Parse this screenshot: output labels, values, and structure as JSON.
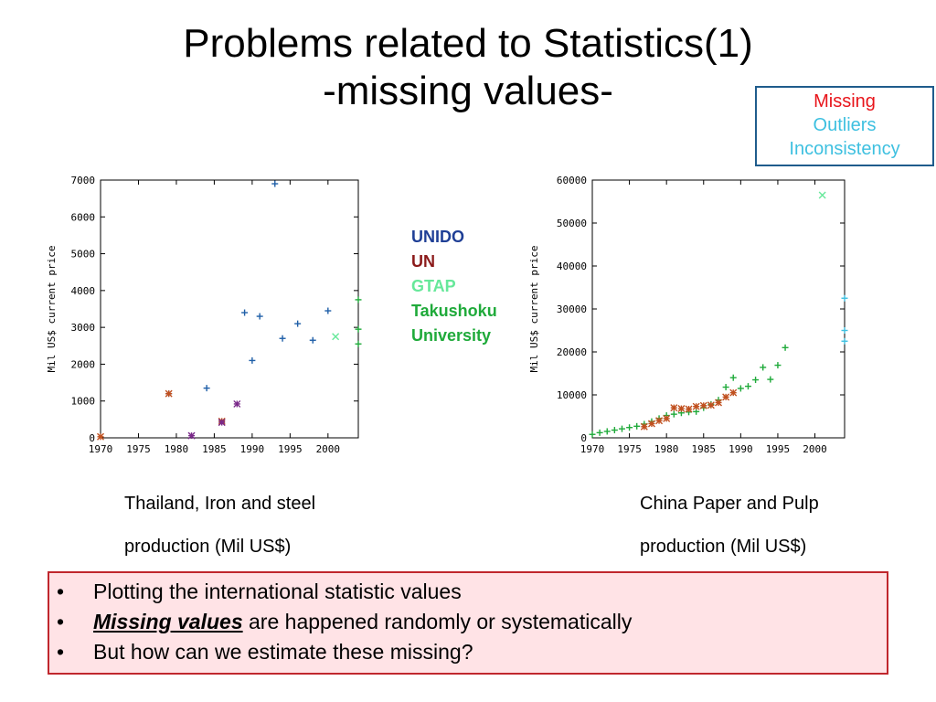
{
  "title": {
    "line1": "Problems related to Statistics(1)",
    "line2": "-missing values-"
  },
  "legend_box": {
    "items": [
      {
        "label": "Missing",
        "color": "#e8151b"
      },
      {
        "label": "Outliers",
        "color": "#3ec0e0"
      },
      {
        "label": "Inconsistency",
        "color": "#3ec0e0"
      }
    ]
  },
  "sources": [
    {
      "label": "UNIDO",
      "color": "#1f3f96"
    },
    {
      "label": "UN",
      "color": "#8b1a1a"
    },
    {
      "label": "GTAP",
      "color": "#66e89a"
    },
    {
      "label": "Takushoku",
      "color": "#1faa3a"
    },
    {
      "label": "University",
      "color": "#1faa3a"
    }
  ],
  "captions": {
    "left": {
      "line1": "Thailand, Iron and steel",
      "line2": "production (Mil US$)"
    },
    "right": {
      "line1": "China Paper and Pulp",
      "line2": "production (Mil US$)"
    }
  },
  "bullets": {
    "b1": "Plotting the international statistic values",
    "b2_em": "Missing values",
    "b2_rest": " are happened randomly or systematically",
    "b3": "But how can we estimate these missing?",
    "dot": "•"
  },
  "chart_data": [
    {
      "type": "scatter",
      "ylabel": "Mil US$ current price",
      "xlabel": "",
      "xlim": [
        1970,
        2004
      ],
      "ylim": [
        0,
        7000
      ],
      "xticks": [
        1970,
        1975,
        1980,
        1985,
        1990,
        1995,
        2000
      ],
      "yticks": [
        0,
        1000,
        2000,
        3000,
        4000,
        5000,
        6000,
        7000
      ],
      "series": [
        {
          "source": "UNIDO",
          "color": "#1f5fa8",
          "marker": "+",
          "points": [
            [
              1979,
              1200
            ],
            [
              1984,
              1350
            ],
            [
              1989,
              3400
            ],
            [
              1990,
              2100
            ],
            [
              1991,
              3300
            ],
            [
              1993,
              6900
            ],
            [
              1994,
              2700
            ],
            [
              1996,
              3100
            ],
            [
              1998,
              2650
            ],
            [
              2000,
              3450
            ]
          ]
        },
        {
          "source": "UN",
          "color": "#c0501f",
          "marker": "*",
          "points": [
            [
              1970,
              30
            ],
            [
              1979,
              1200
            ],
            [
              1986,
              450
            ]
          ]
        },
        {
          "source": "Takushoku University",
          "color": "#7a2a8a",
          "marker": "*",
          "points": [
            [
              1982,
              60
            ],
            [
              1986,
              420
            ],
            [
              1988,
              920
            ]
          ]
        },
        {
          "source": "GTAP",
          "color": "#66e89a",
          "marker": "x",
          "points": [
            [
              2001,
              2750
            ]
          ]
        },
        {
          "source": "edge",
          "color": "#1faa3a",
          "marker": "+",
          "points": [
            [
              2004,
              3750
            ],
            [
              2004,
              2950
            ],
            [
              2004,
              2550
            ]
          ]
        }
      ]
    },
    {
      "type": "scatter",
      "ylabel": "Mil US$ current price",
      "xlabel": "",
      "xlim": [
        1970,
        2004
      ],
      "ylim": [
        0,
        60000
      ],
      "xticks": [
        1970,
        1975,
        1980,
        1985,
        1990,
        1995,
        2000
      ],
      "yticks": [
        0,
        10000,
        20000,
        30000,
        40000,
        50000,
        60000
      ],
      "series": [
        {
          "source": "Takushoku University",
          "color": "#1faa3a",
          "marker": "+",
          "points": [
            [
              1970,
              800
            ],
            [
              1971,
              1200
            ],
            [
              1972,
              1500
            ],
            [
              1973,
              1800
            ],
            [
              1974,
              2100
            ],
            [
              1975,
              2400
            ],
            [
              1976,
              2700
            ],
            [
              1977,
              3200
            ],
            [
              1978,
              3800
            ],
            [
              1979,
              4500
            ],
            [
              1980,
              5200
            ],
            [
              1981,
              5500
            ],
            [
              1982,
              5800
            ],
            [
              1983,
              6000
            ],
            [
              1984,
              6100
            ],
            [
              1985,
              7000
            ],
            [
              1986,
              7800
            ],
            [
              1987,
              8800
            ],
            [
              1988,
              11800
            ],
            [
              1989,
              14000
            ],
            [
              1990,
              11500
            ],
            [
              1991,
              12000
            ],
            [
              1992,
              13500
            ],
            [
              1993,
              16400
            ],
            [
              1994,
              13600
            ],
            [
              1995,
              16900
            ],
            [
              1996,
              21000
            ]
          ]
        },
        {
          "source": "UN",
          "color": "#c0501f",
          "marker": "*",
          "points": [
            [
              1977,
              2600
            ],
            [
              1978,
              3300
            ],
            [
              1979,
              4000
            ],
            [
              1980,
              4500
            ],
            [
              1981,
              7000
            ],
            [
              1982,
              6800
            ],
            [
              1983,
              6700
            ],
            [
              1984,
              7300
            ],
            [
              1985,
              7500
            ],
            [
              1986,
              7600
            ],
            [
              1987,
              8200
            ],
            [
              1988,
              9500
            ],
            [
              1989,
              10500
            ]
          ]
        },
        {
          "source": "GTAP",
          "color": "#66e89a",
          "marker": "x",
          "points": [
            [
              2001,
              56500
            ]
          ]
        },
        {
          "source": "edge",
          "color": "#3ec0e0",
          "marker": "+",
          "points": [
            [
              2004,
              32500
            ],
            [
              2004,
              25000
            ],
            [
              2004,
              22500
            ]
          ]
        }
      ]
    }
  ]
}
